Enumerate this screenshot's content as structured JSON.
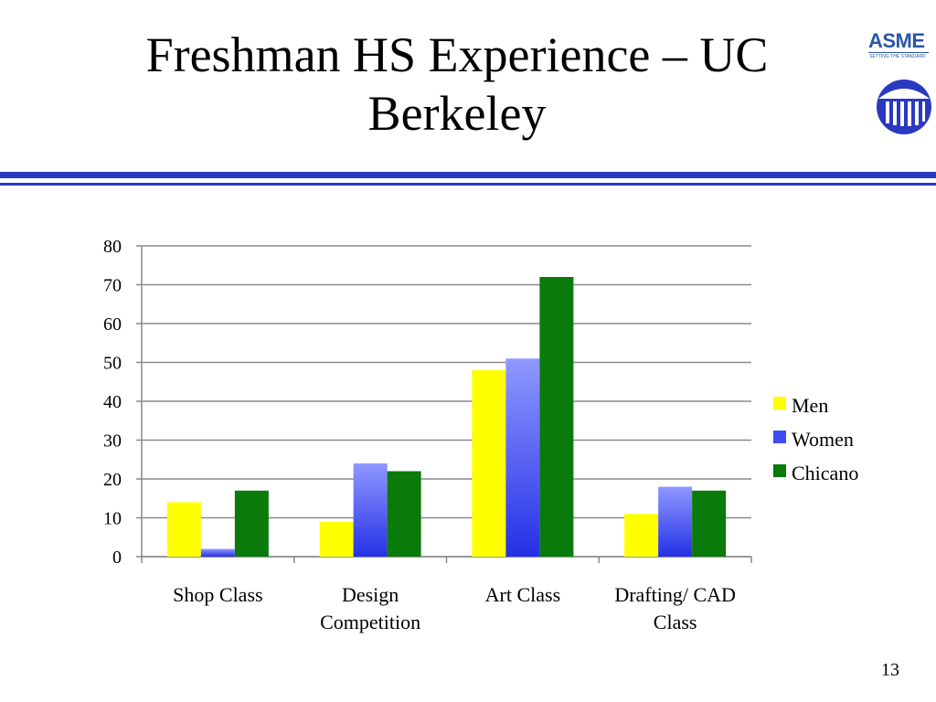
{
  "slide": {
    "title": "Freshman HS Experience – UC Berkeley",
    "page_number": "13"
  },
  "logos": {
    "asme_text": "ASME",
    "asme_tagline": "SETTING THE STANDARD"
  },
  "colors": {
    "rule": "#2b39c0",
    "men": "#ffff00",
    "women": "#3f4cf0",
    "chicano": "#0a7a0a"
  },
  "chart_data": {
    "type": "bar",
    "title": "",
    "xlabel": "",
    "ylabel": "",
    "categories": [
      "Shop Class",
      "Design Competition",
      "Art Class",
      "Drafting/ CAD Class"
    ],
    "category_lines": [
      [
        "Shop Class"
      ],
      [
        "Design",
        "Competition"
      ],
      [
        "Art Class"
      ],
      [
        "Drafting/ CAD",
        "Class"
      ]
    ],
    "series": [
      {
        "name": "Men",
        "values": [
          14,
          9,
          48,
          11
        ]
      },
      {
        "name": "Women",
        "values": [
          2,
          24,
          51,
          18
        ]
      },
      {
        "name": "Chicano",
        "values": [
          17,
          22,
          72,
          17
        ]
      }
    ],
    "ylim": [
      0,
      80
    ],
    "yticks": [
      0,
      10,
      20,
      30,
      40,
      50,
      60,
      70,
      80
    ],
    "grid": true,
    "legend": "right"
  }
}
